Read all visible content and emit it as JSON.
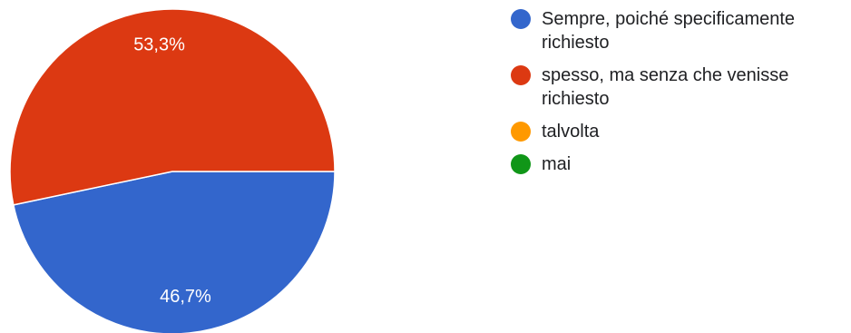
{
  "chart_data": {
    "type": "pie",
    "title": "",
    "slices": [
      {
        "label": "Sempre, poiché specificamente richiesto",
        "value": 46.7,
        "display": "46,7%",
        "color": "#3366cc"
      },
      {
        "label": "spesso, ma senza che venisse richiesto",
        "value": 53.3,
        "display": "53,3%",
        "color": "#dc3912"
      },
      {
        "label": "talvolta",
        "value": 0,
        "display": "",
        "color": "#ff9900"
      },
      {
        "label": "mai",
        "value": 0,
        "display": "",
        "color": "#109618"
      }
    ],
    "legend_position": "right",
    "start_angle_deg": 0,
    "direction": "clockwise"
  }
}
